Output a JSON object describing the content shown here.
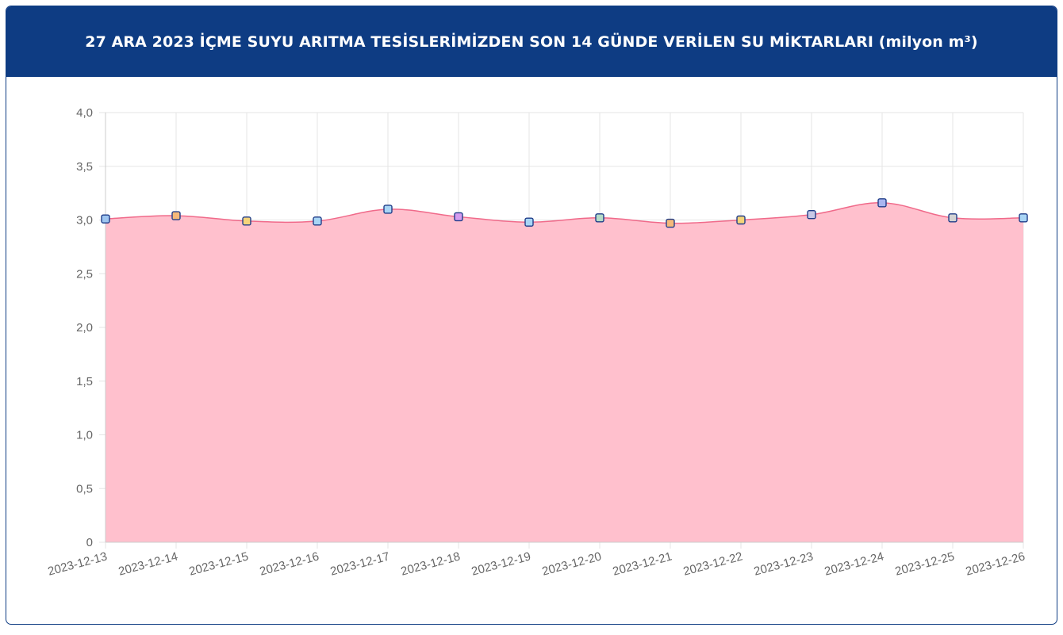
{
  "header": {
    "title": "27 ARA 2023 İÇME SUYU ARITMA TESİSLERİMİZDEN SON 14 GÜNDE VERİLEN SU MİKTARLARI (milyon m³)"
  },
  "colors": {
    "header_bg": "#0e3c83",
    "area_fill": "#ffc0cd",
    "line": "#f06a8a",
    "marker_border": "#1f3c88",
    "grid": "#e5e5e5"
  },
  "chart_data": {
    "type": "area",
    "x": [
      "2023-12-13",
      "2023-12-14",
      "2023-12-15",
      "2023-12-16",
      "2023-12-17",
      "2023-12-18",
      "2023-12-19",
      "2023-12-20",
      "2023-12-21",
      "2023-12-22",
      "2023-12-23",
      "2023-12-24",
      "2023-12-25",
      "2023-12-26"
    ],
    "series": [
      {
        "values": [
          3.01,
          3.04,
          2.99,
          2.99,
          3.1,
          3.03,
          2.98,
          3.02,
          2.97,
          3.0,
          3.05,
          3.16,
          3.02,
          3.02
        ],
        "marker_colors": [
          "#9ec5f0",
          "#f5b97a",
          "#f5d47a",
          "#a9d5f5",
          "#a9d5f5",
          "#d59cf0",
          "#a9d5f5",
          "#b6dcc8",
          "#f5b97a",
          "#f5d47a",
          "#c8c8e6",
          "#a9b5f0",
          "#d3d3d3",
          "#a9d5f5"
        ]
      }
    ],
    "y_ticks": [
      "0",
      "0,5",
      "1,0",
      "1,5",
      "2,0",
      "2,5",
      "3,0",
      "3,5",
      "4,0"
    ],
    "ylim": [
      0,
      4
    ],
    "grid": true,
    "legend": "none"
  }
}
